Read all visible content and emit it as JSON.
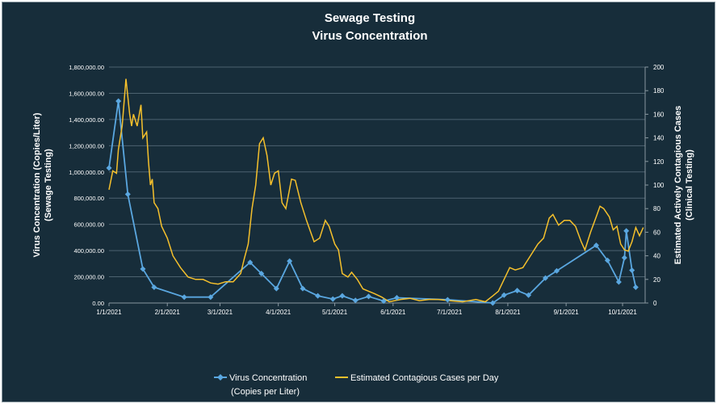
{
  "chart_data": {
    "type": "line",
    "title": [
      "Sewage Testing",
      "Virus Concentration"
    ],
    "xlabel": "",
    "ylabel_left": [
      "Virus Concentration (Copies/Liter)",
      "(Sewage Testing)"
    ],
    "ylabel_right": [
      "Estimated Actively Contagious Cases",
      "(Clinical Testing)"
    ],
    "x_ticks": [
      "1/1/2021",
      "2/1/2021",
      "3/1/2021",
      "4/1/2021",
      "5/1/2021",
      "6/1/2021",
      "7/1/2021",
      "8/1/2021",
      "9/1/2021",
      "10/1/2021"
    ],
    "xlim": [
      "1/1/2021",
      "10/13/2021"
    ],
    "ylim_left": [
      0,
      1800000
    ],
    "y_ticks_left": [
      "0.00",
      "200,000.00",
      "400,000.00",
      "600,000.00",
      "800,000.00",
      "1,000,000.00",
      "1,200,000.00",
      "1,400,000.00",
      "1,600,000.00",
      "1,800,000.00"
    ],
    "ylim_right": [
      0,
      200
    ],
    "y_ticks_right": [
      "0",
      "20",
      "40",
      "60",
      "80",
      "100",
      "120",
      "140",
      "160",
      "180",
      "200"
    ],
    "grid": true,
    "legend_placement": "bottom",
    "series": [
      {
        "name": "Virus Concentration\n(Copies per Liter)",
        "legend_line1": "Virus Concentration",
        "legend_line2": "(Copies per Liter)",
        "axis": "left",
        "color": "#5aa7e0",
        "marker": "diamond",
        "points": [
          [
            "1/1/2021",
            1030000
          ],
          [
            "1/6/2021",
            1540000
          ],
          [
            "1/11/2021",
            830000
          ],
          [
            "1/19/2021",
            260000
          ],
          [
            "1/25/2021",
            120000
          ],
          [
            "2/10/2021",
            45000
          ],
          [
            "2/24/2021",
            45000
          ],
          [
            "3/17/2021",
            310000
          ],
          [
            "3/23/2021",
            225000
          ],
          [
            "3/31/2021",
            110000
          ],
          [
            "4/7/2021",
            320000
          ],
          [
            "4/14/2021",
            110000
          ],
          [
            "4/22/2021",
            55000
          ],
          [
            "4/30/2021",
            30000
          ],
          [
            "5/5/2021",
            55000
          ],
          [
            "5/12/2021",
            20000
          ],
          [
            "5/19/2021",
            50000
          ],
          [
            "5/27/2021",
            15000
          ],
          [
            "6/3/2021",
            40000
          ],
          [
            "6/30/2021",
            25000
          ],
          [
            "7/24/2021",
            0
          ],
          [
            "7/30/2021",
            60000
          ],
          [
            "8/6/2021",
            95000
          ],
          [
            "8/12/2021",
            60000
          ],
          [
            "8/21/2021",
            190000
          ],
          [
            "8/27/2021",
            245000
          ],
          [
            "9/17/2021",
            440000
          ],
          [
            "9/23/2021",
            325000
          ],
          [
            "9/29/2021",
            160000
          ],
          [
            "10/2/2021",
            345000
          ],
          [
            "10/3/2021",
            550000
          ],
          [
            "10/6/2021",
            250000
          ],
          [
            "10/8/2021",
            120000
          ]
        ]
      },
      {
        "name": "Estimated Contagious Cases per Day",
        "legend_line1": "Estimated Contagious Cases per Day",
        "axis": "right",
        "color": "#f5c02c",
        "marker": "none",
        "points": [
          [
            "1/1/2021",
            96
          ],
          [
            "1/3/2021",
            112
          ],
          [
            "1/5/2021",
            110
          ],
          [
            "1/6/2021",
            130
          ],
          [
            "1/8/2021",
            150
          ],
          [
            "1/10/2021",
            190
          ],
          [
            "1/12/2021",
            160
          ],
          [
            "1/13/2021",
            150
          ],
          [
            "1/14/2021",
            160
          ],
          [
            "1/16/2021",
            150
          ],
          [
            "1/18/2021",
            168
          ],
          [
            "1/19/2021",
            140
          ],
          [
            "1/21/2021",
            145
          ],
          [
            "1/22/2021",
            120
          ],
          [
            "1/23/2021",
            100
          ],
          [
            "1/24/2021",
            105
          ],
          [
            "1/25/2021",
            85
          ],
          [
            "1/27/2021",
            80
          ],
          [
            "1/29/2021",
            65
          ],
          [
            "2/1/2021",
            55
          ],
          [
            "2/4/2021",
            40
          ],
          [
            "2/8/2021",
            30
          ],
          [
            "2/12/2021",
            22
          ],
          [
            "2/16/2021",
            20
          ],
          [
            "2/20/2021",
            20
          ],
          [
            "2/24/2021",
            17
          ],
          [
            "2/28/2021",
            16
          ],
          [
            "3/4/2021",
            18
          ],
          [
            "3/8/2021",
            18
          ],
          [
            "3/12/2021",
            25
          ],
          [
            "3/14/2021",
            38
          ],
          [
            "3/16/2021",
            50
          ],
          [
            "3/18/2021",
            80
          ],
          [
            "3/20/2021",
            100
          ],
          [
            "3/22/2021",
            135
          ],
          [
            "3/24/2021",
            140
          ],
          [
            "3/26/2021",
            125
          ],
          [
            "3/28/2021",
            100
          ],
          [
            "3/30/2021",
            110
          ],
          [
            "4/1/2021",
            112
          ],
          [
            "4/3/2021",
            85
          ],
          [
            "4/5/2021",
            80
          ],
          [
            "4/8/2021",
            105
          ],
          [
            "4/10/2021",
            104
          ],
          [
            "4/13/2021",
            85
          ],
          [
            "4/16/2021",
            70
          ],
          [
            "4/20/2021",
            52
          ],
          [
            "4/23/2021",
            55
          ],
          [
            "4/26/2021",
            70
          ],
          [
            "4/28/2021",
            65
          ],
          [
            "5/1/2021",
            50
          ],
          [
            "5/3/2021",
            45
          ],
          [
            "5/5/2021",
            25
          ],
          [
            "5/8/2021",
            22
          ],
          [
            "5/10/2021",
            26
          ],
          [
            "5/13/2021",
            20
          ],
          [
            "5/16/2021",
            12
          ],
          [
            "5/19/2021",
            10
          ],
          [
            "5/22/2021",
            8
          ],
          [
            "5/26/2021",
            5
          ],
          [
            "5/30/2021",
            1
          ],
          [
            "6/5/2021",
            3
          ],
          [
            "6/10/2021",
            4
          ],
          [
            "6/15/2021",
            2
          ],
          [
            "6/20/2021",
            3
          ],
          [
            "6/25/2021",
            3
          ],
          [
            "7/1/2021",
            2
          ],
          [
            "7/8/2021",
            1
          ],
          [
            "7/15/2021",
            3
          ],
          [
            "7/20/2021",
            1
          ],
          [
            "7/24/2021",
            6
          ],
          [
            "7/27/2021",
            10
          ],
          [
            "7/30/2021",
            20
          ],
          [
            "8/2/2021",
            30
          ],
          [
            "8/5/2021",
            28
          ],
          [
            "8/9/2021",
            30
          ],
          [
            "8/13/2021",
            40
          ],
          [
            "8/17/2021",
            50
          ],
          [
            "8/20/2021",
            55
          ],
          [
            "8/23/2021",
            72
          ],
          [
            "8/25/2021",
            75
          ],
          [
            "8/28/2021",
            66
          ],
          [
            "8/31/2021",
            70
          ],
          [
            "9/3/2021",
            70
          ],
          [
            "9/6/2021",
            65
          ],
          [
            "9/9/2021",
            52
          ],
          [
            "9/11/2021",
            45
          ],
          [
            "9/14/2021",
            60
          ],
          [
            "9/17/2021",
            73
          ],
          [
            "9/19/2021",
            82
          ],
          [
            "9/21/2021",
            80
          ],
          [
            "9/24/2021",
            73
          ],
          [
            "9/26/2021",
            62
          ],
          [
            "9/28/2021",
            65
          ],
          [
            "9/30/2021",
            50
          ],
          [
            "10/2/2021",
            45
          ],
          [
            "10/4/2021",
            44
          ],
          [
            "10/6/2021",
            52
          ],
          [
            "10/8/2021",
            64
          ],
          [
            "10/10/2021",
            57
          ],
          [
            "10/12/2021",
            64
          ]
        ]
      }
    ]
  }
}
